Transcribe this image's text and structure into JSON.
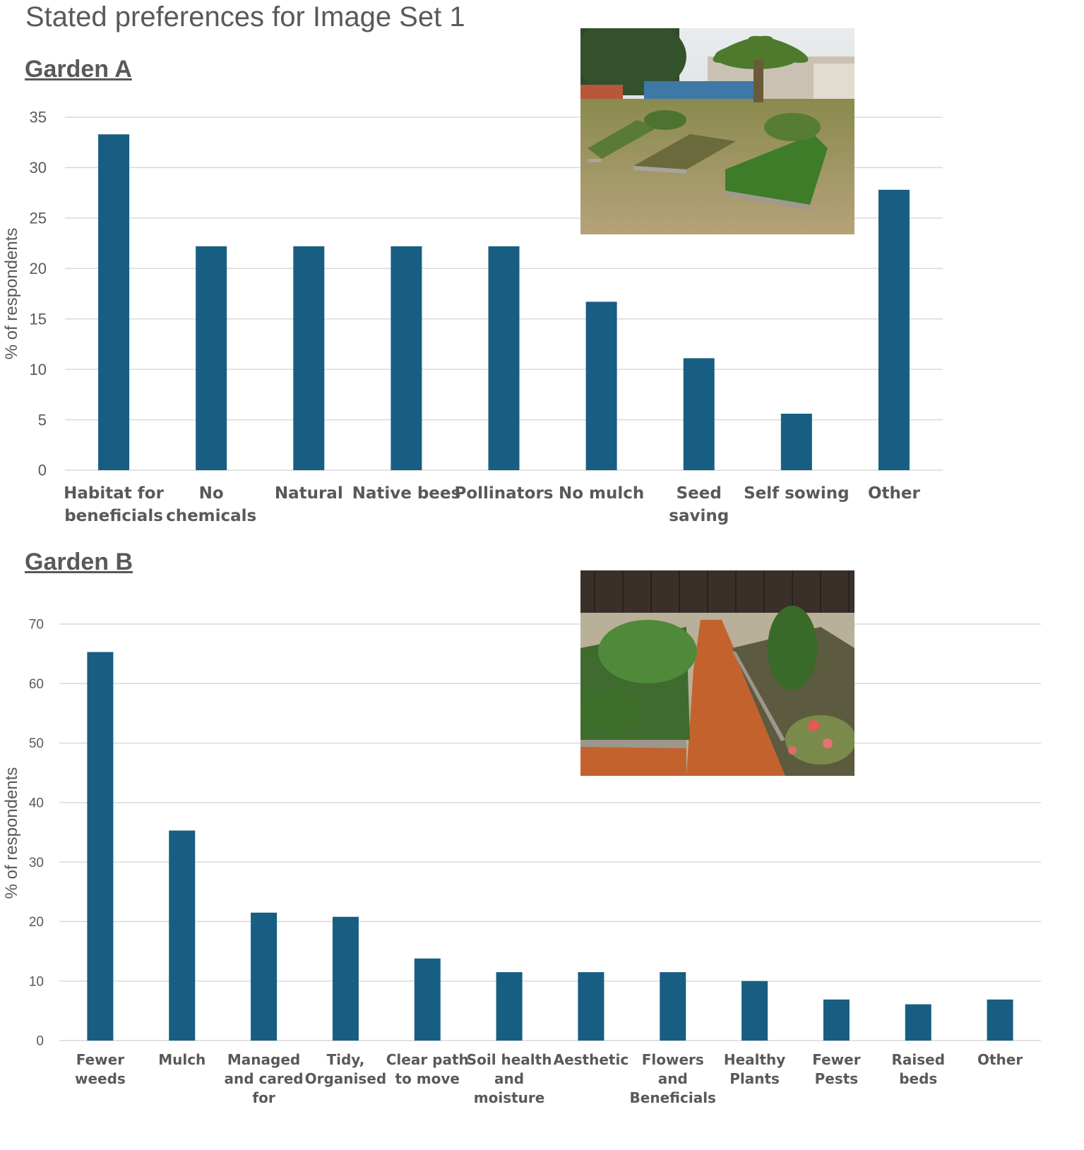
{
  "page_title": "Stated preferences for Image Set 1",
  "chart_data": [
    {
      "type": "bar",
      "title": "Garden A",
      "ylabel": "% of respondents",
      "xlabel": "",
      "ylim": [
        0,
        35
      ],
      "yticks": [
        0,
        5,
        10,
        15,
        20,
        25,
        30,
        35
      ],
      "grid": true,
      "bar_color": "#175E82",
      "categories": [
        [
          "Habitat for",
          "beneficials"
        ],
        [
          "No",
          "chemicals"
        ],
        [
          "Natural"
        ],
        [
          "Native bees"
        ],
        [
          "Pollinators"
        ],
        [
          "No mulch"
        ],
        [
          "Seed",
          "saving"
        ],
        [
          "Self sowing"
        ],
        [
          "Other"
        ]
      ],
      "values": [
        33.3,
        22.2,
        22.2,
        22.2,
        22.2,
        16.7,
        11.1,
        5.6,
        27.8
      ]
    },
    {
      "type": "bar",
      "title": "Garden B",
      "ylabel": "% of respondents",
      "xlabel": "",
      "ylim": [
        0,
        70
      ],
      "yticks": [
        0,
        10,
        20,
        30,
        40,
        50,
        60,
        70
      ],
      "grid": true,
      "bar_color": "#175E82",
      "categories": [
        [
          "Fewer",
          "weeds"
        ],
        [
          "Mulch"
        ],
        [
          "Managed",
          "and cared",
          "for"
        ],
        [
          "Tidy,",
          "Organised"
        ],
        [
          "Clear path",
          "to move"
        ],
        [
          "Soil health",
          "and",
          "moisture"
        ],
        [
          "Aesthetic"
        ],
        [
          "Flowers",
          "and",
          "Beneficials"
        ],
        [
          "Healthy",
          "Plants"
        ],
        [
          "Fewer",
          "Pests"
        ],
        [
          "Raised",
          "beds"
        ],
        [
          "Other"
        ]
      ],
      "values": [
        65.3,
        35.3,
        21.5,
        20.8,
        13.8,
        11.5,
        11.5,
        11.5,
        10.0,
        6.9,
        6.1,
        6.9
      ]
    }
  ],
  "photos": [
    {
      "name": "garden-a-photo",
      "description_icon": "garden-photo"
    },
    {
      "name": "garden-b-photo",
      "description_icon": "garden-photo"
    }
  ]
}
